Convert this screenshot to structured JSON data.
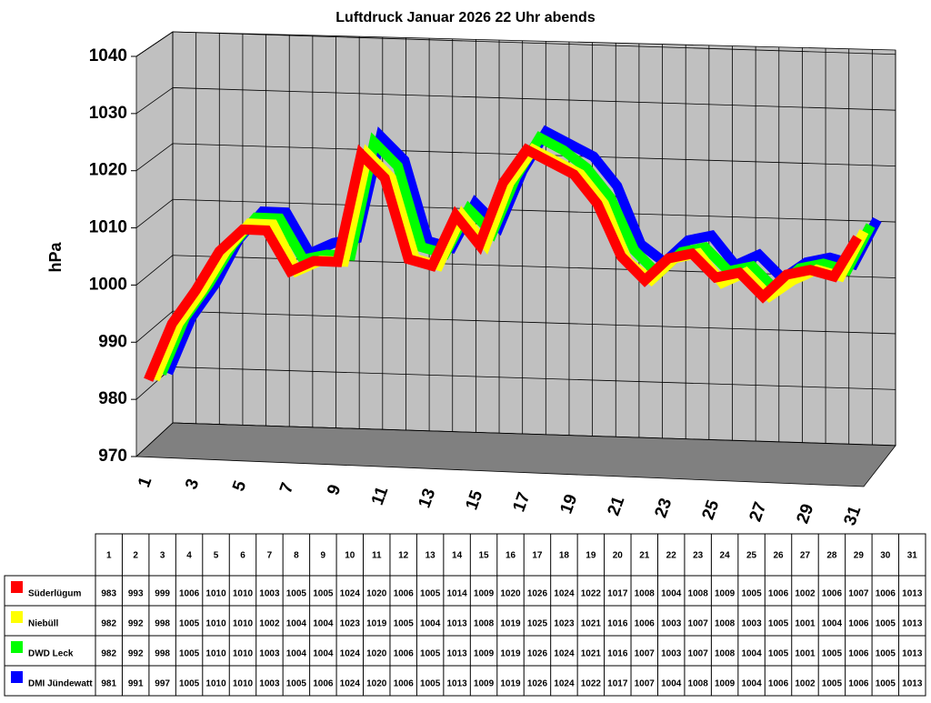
{
  "chart_data": {
    "type": "line3d",
    "title": "Luftdruck Januar 2026 22 Uhr abends",
    "y_label": "hPa",
    "categories": [
      "1",
      "2",
      "3",
      "4",
      "5",
      "6",
      "7",
      "8",
      "9",
      "10",
      "11",
      "12",
      "13",
      "14",
      "15",
      "16",
      "17",
      "18",
      "19",
      "20",
      "21",
      "22",
      "23",
      "24",
      "25",
      "26",
      "27",
      "28",
      "29",
      "30",
      "31"
    ],
    "ylim": [
      970,
      1040
    ],
    "yticks": [
      970,
      980,
      990,
      1000,
      1010,
      1020,
      1030,
      1040
    ],
    "grid": true,
    "series": [
      {
        "name": "Süderlügum",
        "color": "#ff0000",
        "values": [
          983,
          993,
          999,
          1006,
          1010,
          1010,
          1003,
          1005,
          1005,
          1024,
          1020,
          1006,
          1005,
          1014,
          1009,
          1020,
          1026,
          1024,
          1022,
          1017,
          1008,
          1004,
          1008,
          1009,
          1005,
          1006,
          1002,
          1006,
          1007,
          1006,
          1013
        ]
      },
      {
        "name": "Niebüll",
        "color": "#ffff00",
        "values": [
          982,
          992,
          998,
          1005,
          1010,
          1010,
          1002,
          1004,
          1004,
          1023,
          1019,
          1005,
          1004,
          1013,
          1008,
          1019,
          1025,
          1023,
          1021,
          1016,
          1006,
          1003,
          1007,
          1008,
          1003,
          1005,
          1001,
          1004,
          1006,
          1005,
          1013
        ]
      },
      {
        "name": "DWD Leck",
        "color": "#00ff00",
        "values": [
          982,
          992,
          998,
          1005,
          1010,
          1010,
          1003,
          1004,
          1004,
          1024,
          1020,
          1006,
          1005,
          1013,
          1009,
          1019,
          1026,
          1024,
          1021,
          1016,
          1007,
          1003,
          1007,
          1008,
          1004,
          1005,
          1001,
          1005,
          1006,
          1005,
          1013
        ]
      },
      {
        "name": "DMI Jündewatt",
        "color": "#0000ff",
        "values": [
          981,
          991,
          997,
          1005,
          1010,
          1010,
          1003,
          1005,
          1006,
          1024,
          1020,
          1006,
          1005,
          1013,
          1009,
          1019,
          1026,
          1024,
          1022,
          1017,
          1007,
          1004,
          1008,
          1009,
          1004,
          1006,
          1002,
          1005,
          1006,
          1005,
          1013
        ]
      }
    ]
  }
}
